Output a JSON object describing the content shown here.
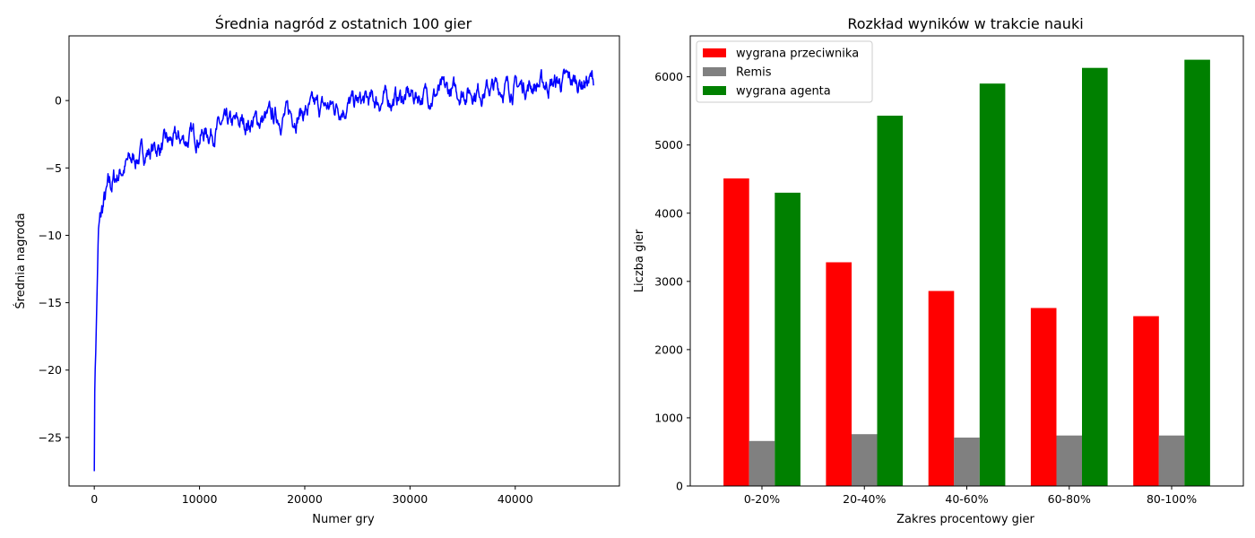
{
  "chart_data": [
    {
      "type": "line",
      "title": "Średnia nagród z ostatnich 100 gier",
      "xlabel": "Numer gry",
      "ylabel": "Średnia nagroda",
      "xlim": [
        -2400,
        49900
      ],
      "ylim": [
        -28.6,
        4.8
      ],
      "xticks": [
        0,
        10000,
        20000,
        30000,
        40000
      ],
      "yticks": [
        -25,
        -20,
        -15,
        -10,
        -5,
        0
      ],
      "color": "#0000ff",
      "series": [
        {
          "x": [
            0,
            50,
            100,
            150,
            200,
            300,
            400,
            500,
            700,
            900,
            1200,
            1500,
            2000,
            2500,
            3000,
            4000,
            5000,
            6000,
            7000,
            8000,
            9000,
            10000,
            11000,
            12000,
            13000,
            14000,
            15000,
            16000,
            17000,
            18000,
            19000,
            20000,
            21000,
            22000,
            23000,
            24000,
            25000,
            26000,
            27000,
            28000,
            29000,
            30000,
            31000,
            32000,
            33000,
            34000,
            35000,
            36000,
            37000,
            38000,
            39000,
            40000,
            41000,
            42000,
            43000,
            44000,
            45000,
            46000,
            47000,
            47500
          ],
          "y": [
            -27.2,
            -21,
            -19.5,
            -18,
            -16.5,
            -13,
            -10,
            -9.5,
            -8.5,
            -7.8,
            -7.2,
            -6.5,
            -5.8,
            -5.2,
            -4.8,
            -4.2,
            -3.8,
            -3.5,
            -3.2,
            -3.0,
            -2.8,
            -2.5,
            -2.3,
            -2.0,
            -1.9,
            -1.7,
            -1.6,
            -1.4,
            -1.3,
            -1.1,
            -1.0,
            -0.8,
            -0.6,
            -0.5,
            -0.4,
            -0.3,
            -0.2,
            -0.1,
            0.0,
            0.1,
            0.2,
            0.3,
            0.4,
            0.5,
            0.6,
            0.6,
            0.7,
            0.8,
            0.8,
            0.9,
            1.0,
            1.0,
            1.1,
            1.2,
            1.2,
            1.3,
            1.4,
            1.4,
            1.5,
            1.5
          ]
        }
      ],
      "noise_amplitude_note": ""
    },
    {
      "type": "bar",
      "title": "Rozkład wyników w trakcie nauki",
      "xlabel": "Zakres procentowy gier",
      "ylabel": "Liczba gier",
      "ylim": [
        0,
        6600
      ],
      "yticks": [
        0,
        1000,
        2000,
        3000,
        4000,
        5000,
        6000
      ],
      "categories": [
        "0-20%",
        "20-40%",
        "40-60%",
        "60-80%",
        "80-100%"
      ],
      "legend_position": "upper-left",
      "series": [
        {
          "name": "wygrana przeciwnika",
          "color": "#ff0000",
          "values": [
            4510,
            3280,
            2860,
            2610,
            2490
          ]
        },
        {
          "name": "Remis",
          "color": "#808080",
          "values": [
            660,
            760,
            710,
            740,
            740
          ]
        },
        {
          "name": "wygrana agenta",
          "color": "#008000",
          "values": [
            4300,
            5430,
            5900,
            6130,
            6250
          ]
        }
      ]
    }
  ]
}
